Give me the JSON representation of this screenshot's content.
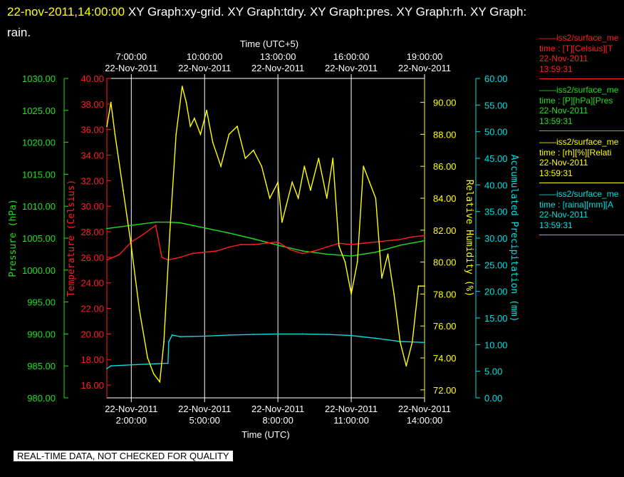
{
  "header": {
    "timestamp": "22-nov-2011,14:00:00",
    "graphs_line1": "XY Graph:xy-grid.  XY Graph:tdry.  XY Graph:pres.  XY Graph:rh.  XY Graph:",
    "graphs_line2": "rain."
  },
  "badge": "REAL-TIME DATA, NOT CHECKED FOR QUALITY",
  "legend": [
    {
      "line1": "iss2/surface_me",
      "line2": "time : [T][Celsius][T",
      "line3": "22-Nov-2011",
      "line4": "13:59:31",
      "color": "#ff2020"
    },
    {
      "line1": "iss2/surface_me",
      "line2": "time : [P][hPa][Pres",
      "line3": "22-Nov-2011",
      "line4": "13:59:31",
      "color": "#20e020"
    },
    {
      "line1": "iss2/surface_me",
      "line2": "time : [rh][%][Relati",
      "line3": "22-Nov-2011",
      "line4": "13:59:31",
      "color": "#ffff00"
    },
    {
      "line1": "iss2/surface_me",
      "line2": "time : [raina][mm][A",
      "line3": "22-Nov-2011",
      "line4": "13:59:31",
      "color": "#00e0e0"
    }
  ],
  "chart_data": {
    "type": "line",
    "grid": "vertical lines only",
    "colors": {
      "temperature": "#ff2020",
      "pressure": "#20e020",
      "humidity": "#ffff00",
      "precipitation": "#00e0e0",
      "frame": "#ffffff"
    },
    "top_axis": {
      "title": "Time (UTC+5)",
      "ticks": [
        {
          "time": "7:00:00",
          "date": "22-Nov-2011"
        },
        {
          "time": "10:00:00",
          "date": "22-Nov-2011"
        },
        {
          "time": "13:00:00",
          "date": "22-Nov-2011"
        },
        {
          "time": "16:00:00",
          "date": "22-Nov-2011"
        },
        {
          "time": "19:00:00",
          "date": "22-Nov-2011"
        }
      ]
    },
    "bottom_axis": {
      "title": "Time (UTC)",
      "range": [
        "22-Nov-2011 01:00",
        "22-Nov-2011 14:00"
      ],
      "ticks": [
        {
          "time": "2:00:00",
          "date": "22-Nov-2011"
        },
        {
          "time": "5:00:00",
          "date": "22-Nov-2011"
        },
        {
          "time": "8:00:00",
          "date": "22-Nov-2011"
        },
        {
          "time": "11:00:00",
          "date": "22-Nov-2011"
        },
        {
          "time": "14:00:00",
          "date": "22-Nov-2011"
        }
      ]
    },
    "y_axes": {
      "pressure": {
        "label": "Pressure (hPa)",
        "ylim": [
          980,
          1030
        ],
        "ticks": [
          "980.00",
          "985.00",
          "990.00",
          "995.00",
          "1000.00",
          "1005.00",
          "1010.00",
          "1015.00",
          "1020.00",
          "1025.00",
          "1030.00"
        ]
      },
      "temperature": {
        "label": "Temperature (Celsius)",
        "ylim": [
          15,
          40
        ],
        "ticks": [
          "16.00",
          "18.00",
          "20.00",
          "22.00",
          "24.00",
          "26.00",
          "28.00",
          "30.00",
          "32.00",
          "34.00",
          "36.00",
          "38.00",
          "40.00"
        ]
      },
      "humidity": {
        "label": "Relative Humidity (%)",
        "ylim": [
          71.5,
          91.5
        ],
        "ticks": [
          "72.00",
          "74.00",
          "76.00",
          "78.00",
          "80.00",
          "82.00",
          "84.00",
          "86.00",
          "88.00",
          "90.00"
        ]
      },
      "precipitation": {
        "label": "Accumulated Precipitation (mm)",
        "ylim": [
          0,
          60
        ],
        "ticks": [
          "0.00",
          "5.00",
          "10.00",
          "15.00",
          "20.00",
          "25.00",
          "30.00",
          "35.00",
          "40.00",
          "45.00",
          "50.00",
          "55.00",
          "60.00"
        ]
      }
    },
    "series": [
      {
        "key": "humidity",
        "x": [
          "01:00",
          "01:10",
          "01:20",
          "01:40",
          "02:00",
          "02:20",
          "02:40",
          "02:55",
          "03:10",
          "03:20",
          "03:35",
          "03:50",
          "04:05",
          "04:15",
          "04:25",
          "04:35",
          "04:50",
          "05:05",
          "05:20",
          "05:40",
          "06:00",
          "06:20",
          "06:40",
          "07:00",
          "07:20",
          "07:40",
          "08:00",
          "08:10",
          "08:20",
          "08:35",
          "08:50",
          "09:05",
          "09:20",
          "09:40",
          "10:00",
          "10:15",
          "10:30",
          "10:45",
          "11:00",
          "11:15",
          "11:30",
          "11:45",
          "12:00",
          "12:15",
          "12:30",
          "12:45",
          "13:00",
          "13:15",
          "13:30",
          "13:45",
          "14:00"
        ],
        "values": [
          88.5,
          90.0,
          88.0,
          84.5,
          81.0,
          77.0,
          74.0,
          73.0,
          72.5,
          75.0,
          82.0,
          88.0,
          91.0,
          90.0,
          88.5,
          89.0,
          88.0,
          89.5,
          87.5,
          86.0,
          88.0,
          88.5,
          86.5,
          87.0,
          86.0,
          84.0,
          85.0,
          82.5,
          83.5,
          85.0,
          84.0,
          86.0,
          84.5,
          86.5,
          84.0,
          86.5,
          81.0,
          80.0,
          78.0,
          80.0,
          86.0,
          85.0,
          84.0,
          79.0,
          80.5,
          78.0,
          75.0,
          73.5,
          75.0,
          78.5,
          78.5
        ]
      },
      {
        "key": "temperature",
        "x": [
          "01:00",
          "01:30",
          "02:00",
          "02:30",
          "03:00",
          "03:15",
          "03:30",
          "04:00",
          "04:30",
          "05:00",
          "05:30",
          "06:00",
          "06:30",
          "07:00",
          "07:30",
          "08:00",
          "08:30",
          "09:00",
          "09:30",
          "10:00",
          "10:30",
          "11:00",
          "11:30",
          "12:00",
          "12:30",
          "13:00",
          "13:30",
          "14:00"
        ],
        "values": [
          25.8,
          26.2,
          27.2,
          27.8,
          28.5,
          26.0,
          25.8,
          26.0,
          26.3,
          26.4,
          26.5,
          26.8,
          27.0,
          27.0,
          27.1,
          27.2,
          26.6,
          26.3,
          26.5,
          26.8,
          27.1,
          27.0,
          27.1,
          27.2,
          27.3,
          27.4,
          27.6,
          27.7
        ]
      },
      {
        "key": "pressure",
        "x": [
          "01:00",
          "02:00",
          "03:00",
          "03:30",
          "04:00",
          "04:30",
          "05:00",
          "06:00",
          "07:00",
          "08:00",
          "09:00",
          "10:00",
          "11:00",
          "12:00",
          "13:00",
          "14:00"
        ],
        "values": [
          1006.5,
          1007.0,
          1007.5,
          1007.5,
          1007.4,
          1007.0,
          1006.6,
          1005.8,
          1004.9,
          1003.9,
          1003.0,
          1002.5,
          1002.2,
          1002.8,
          1003.9,
          1004.6
        ]
      },
      {
        "key": "precipitation",
        "x": [
          "01:00",
          "01:10",
          "02:00",
          "03:00",
          "03:30",
          "03:32",
          "03:40",
          "04:00",
          "05:00",
          "06:00",
          "07:00",
          "08:00",
          "09:00",
          "10:00",
          "11:00",
          "12:00",
          "13:00",
          "14:00"
        ],
        "values": [
          5.5,
          6.0,
          6.2,
          6.4,
          6.5,
          10.5,
          11.8,
          11.5,
          11.6,
          11.8,
          11.9,
          12.0,
          12.0,
          11.9,
          11.7,
          11.2,
          10.6,
          10.4
        ]
      }
    ]
  }
}
